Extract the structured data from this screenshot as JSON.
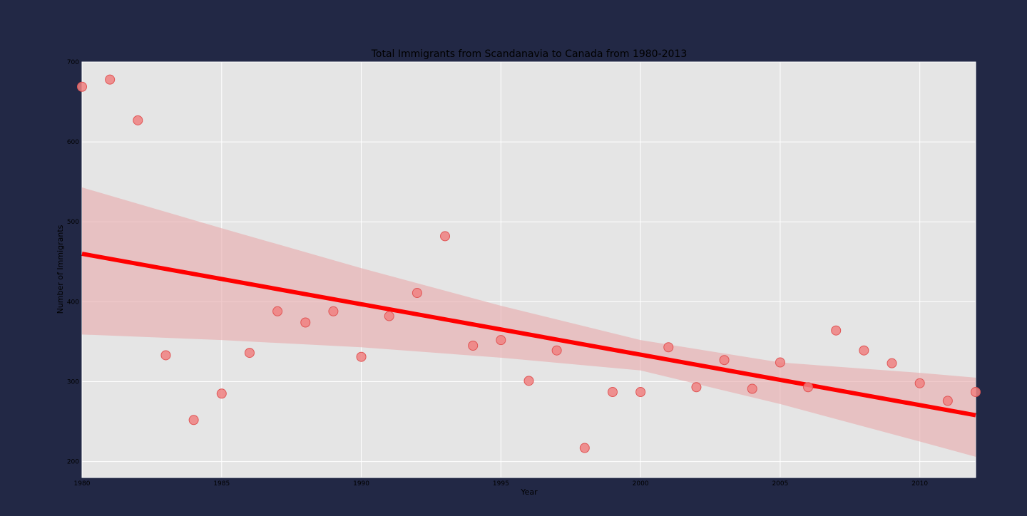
{
  "chart_data": {
    "type": "scatter",
    "title": "Total Immigrants from Scandanavia to Canada from 1980-2013",
    "xlabel": "Year",
    "ylabel": "Number of Immigrants",
    "xlim": [
      1980,
      2012
    ],
    "ylim": [
      180,
      700
    ],
    "xticks": [
      1980,
      1985,
      1990,
      1995,
      2000,
      2005,
      2010
    ],
    "yticks": [
      200,
      300,
      400,
      500,
      600,
      700
    ],
    "grid": true,
    "legend": "none",
    "colors": {
      "figure_bg": "#222845",
      "axes_bg": "#e5e5e5",
      "grid": "#ffffff",
      "points": "#f08080",
      "points_edge": "#e05555",
      "fit_line": "#ff0000",
      "confidence_band": "#e8a8aa"
    },
    "series": [
      {
        "x": [
          1980,
          1981,
          1982,
          1983,
          1984,
          1985,
          1986,
          1987,
          1988,
          1989,
          1990,
          1991,
          1992,
          1993,
          1994,
          1995,
          1996,
          1997,
          1998,
          1999,
          2000,
          2001,
          2002,
          2003,
          2004,
          2005,
          2006,
          2007,
          2008,
          2009,
          2010,
          2011,
          2012
        ],
        "y": [
          669,
          678,
          627,
          333,
          252,
          285,
          336,
          388,
          374,
          388,
          331,
          382,
          411,
          482,
          345,
          352,
          301,
          339,
          217,
          287,
          287,
          343,
          293,
          327,
          291,
          324,
          293,
          364,
          339,
          323,
          298,
          276,
          287
        ]
      }
    ],
    "regression": {
      "x": [
        1980,
        2012
      ],
      "y": [
        460,
        258
      ]
    },
    "confidence_band": {
      "x": [
        1980,
        1985,
        1990,
        1995,
        2000,
        2005,
        2010,
        2012
      ],
      "upper": [
        543,
        492,
        442,
        395,
        352,
        324,
        311,
        305
      ],
      "lower": [
        359,
        352,
        343,
        330,
        314,
        272,
        225,
        206
      ]
    }
  }
}
